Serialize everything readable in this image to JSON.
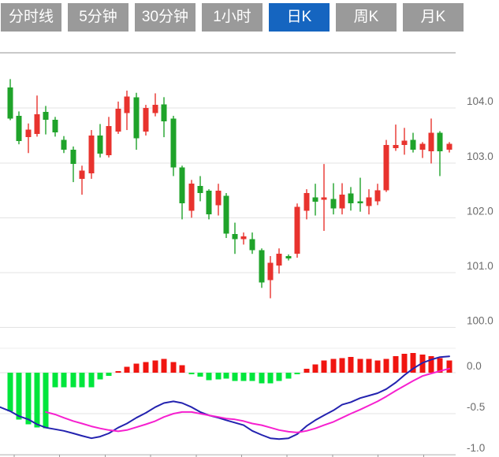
{
  "tabs": {
    "items": [
      {
        "label": "分时线",
        "active": false
      },
      {
        "label": "5分钟",
        "active": false
      },
      {
        "label": "30分钟",
        "active": false
      },
      {
        "label": "1小时",
        "active": false
      },
      {
        "label": "日K",
        "active": true
      },
      {
        "label": "周K",
        "active": false
      },
      {
        "label": "月K",
        "active": false
      }
    ],
    "active_bg": "#1565c0",
    "inactive_bg": "#9a9a9a",
    "text_color": "#ffffff"
  },
  "chart_data": {
    "type": "candlestick_with_macd",
    "grid": true,
    "legend": "none",
    "price_panel": {
      "ylim": [
        99.79,
        105.01
      ],
      "y_ticks": [
        {
          "label": "104.0",
          "value": 104.0
        },
        {
          "label": "103.0",
          "value": 103.0
        },
        {
          "label": "102.0",
          "value": 102.0
        },
        {
          "label": "101.0",
          "value": 101.0
        },
        {
          "label": "100.0",
          "value": 100.0
        }
      ],
      "candles_format": [
        "x",
        "open",
        "high",
        "low",
        "close"
      ],
      "candles": [
        [
          13,
          104.38,
          104.53,
          103.78,
          103.81
        ],
        [
          24,
          103.86,
          103.94,
          103.34,
          103.4
        ],
        [
          36,
          103.47,
          103.72,
          103.18,
          103.61
        ],
        [
          47,
          103.53,
          104.23,
          103.48,
          103.89
        ],
        [
          58,
          103.93,
          104.04,
          103.52,
          103.79
        ],
        [
          70,
          103.79,
          103.84,
          103.48,
          103.56
        ],
        [
          81,
          103.42,
          103.49,
          103.18,
          103.24
        ],
        [
          93,
          103.24,
          103.3,
          102.65,
          102.98
        ],
        [
          104,
          102.71,
          102.95,
          102.42,
          102.86
        ],
        [
          116,
          102.81,
          103.6,
          102.71,
          103.5
        ],
        [
          127,
          103.5,
          103.71,
          103.1,
          103.17
        ],
        [
          138,
          103.14,
          103.84,
          103.1,
          103.67
        ],
        [
          150,
          103.57,
          104.12,
          103.53,
          103.99
        ],
        [
          161,
          103.91,
          104.32,
          103.6,
          104.21
        ],
        [
          173,
          104.2,
          104.28,
          103.24,
          103.45
        ],
        [
          185,
          103.57,
          104.06,
          103.5,
          104.0
        ],
        [
          197,
          103.91,
          104.27,
          103.85,
          104.06
        ],
        [
          208,
          104.07,
          104.2,
          103.47,
          103.76
        ],
        [
          220,
          103.81,
          103.86,
          102.76,
          102.92
        ],
        [
          231,
          102.92,
          102.95,
          101.97,
          102.26
        ],
        [
          243,
          102.13,
          102.69,
          102.0,
          102.62
        ],
        [
          254,
          102.58,
          102.76,
          102.3,
          102.45
        ],
        [
          265,
          102.49,
          102.52,
          101.97,
          102.06
        ],
        [
          277,
          102.23,
          102.62,
          102.04,
          102.49
        ],
        [
          287,
          102.4,
          102.45,
          101.63,
          101.71
        ],
        [
          298,
          101.7,
          101.91,
          101.34,
          101.61
        ],
        [
          309,
          101.61,
          101.73,
          101.51,
          101.66
        ],
        [
          320,
          101.61,
          101.73,
          101.34,
          101.41
        ],
        [
          332,
          101.41,
          101.44,
          100.72,
          100.82
        ],
        [
          343,
          100.86,
          101.3,
          100.53,
          101.18
        ],
        [
          354,
          101.13,
          101.44,
          100.98,
          101.34
        ],
        [
          366,
          101.3,
          101.33,
          101.22,
          101.26
        ],
        [
          377,
          101.34,
          102.26,
          101.27,
          102.2
        ],
        [
          389,
          102.13,
          102.52,
          101.97,
          102.45
        ],
        [
          400,
          102.37,
          102.62,
          102.04,
          102.29
        ],
        [
          411,
          102.33,
          102.98,
          101.76,
          102.37
        ],
        [
          423,
          102.34,
          102.63,
          102.06,
          102.17
        ],
        [
          434,
          102.17,
          102.63,
          102.06,
          102.42
        ],
        [
          445,
          102.44,
          102.56,
          102.13,
          102.26
        ],
        [
          457,
          102.3,
          102.73,
          102.11,
          102.26
        ],
        [
          468,
          102.21,
          102.52,
          102.06,
          102.37
        ],
        [
          479,
          102.3,
          102.62,
          102.23,
          102.5
        ],
        [
          490,
          102.5,
          103.42,
          102.47,
          103.33
        ],
        [
          502,
          103.27,
          103.7,
          103.22,
          103.33
        ],
        [
          513,
          103.33,
          103.64,
          103.15,
          103.41
        ],
        [
          524,
          103.42,
          103.55,
          103.19,
          103.24
        ],
        [
          536,
          103.24,
          103.38,
          103.09,
          103.35
        ],
        [
          547,
          103.21,
          103.81,
          102.99,
          103.55
        ],
        [
          558,
          103.55,
          103.58,
          102.76,
          103.21
        ],
        [
          570,
          103.24,
          103.38,
          103.19,
          103.35
        ]
      ]
    },
    "macd_panel": {
      "ylim": [
        -1.0,
        0.27
      ],
      "y_ticks": [
        {
          "label": "0.0",
          "value": 0.0
        },
        {
          "label": "-0.5",
          "value": -0.5
        },
        {
          "label": "-1.0",
          "value": -1.0
        }
      ],
      "histogram_format": [
        "x",
        "value"
      ],
      "histogram": [
        [
          13,
          -0.47
        ],
        [
          24,
          -0.57
        ],
        [
          36,
          -0.63
        ],
        [
          47,
          -0.67
        ],
        [
          58,
          -0.68
        ],
        [
          70,
          -0.18
        ],
        [
          81,
          -0.18
        ],
        [
          93,
          -0.18
        ],
        [
          104,
          -0.18
        ],
        [
          116,
          -0.18
        ],
        [
          127,
          -0.08
        ],
        [
          138,
          -0.04
        ],
        [
          150,
          0.02
        ],
        [
          161,
          0.07
        ],
        [
          173,
          0.11
        ],
        [
          185,
          0.13
        ],
        [
          197,
          0.15
        ],
        [
          208,
          0.17
        ],
        [
          220,
          0.13
        ],
        [
          231,
          0.09
        ],
        [
          243,
          -0.02
        ],
        [
          254,
          -0.05
        ],
        [
          265,
          -0.09
        ],
        [
          277,
          -0.08
        ],
        [
          287,
          -0.07
        ],
        [
          298,
          -0.1
        ],
        [
          309,
          -0.1
        ],
        [
          320,
          -0.1
        ],
        [
          332,
          -0.13
        ],
        [
          343,
          -0.13
        ],
        [
          354,
          -0.1
        ],
        [
          366,
          -0.07
        ],
        [
          377,
          -0.02
        ],
        [
          389,
          0.05
        ],
        [
          400,
          0.1
        ],
        [
          411,
          0.15
        ],
        [
          423,
          0.17
        ],
        [
          434,
          0.18
        ],
        [
          445,
          0.19
        ],
        [
          457,
          0.17
        ],
        [
          468,
          0.17
        ],
        [
          479,
          0.15
        ],
        [
          490,
          0.17
        ],
        [
          502,
          0.2
        ],
        [
          513,
          0.23
        ],
        [
          524,
          0.24
        ],
        [
          536,
          0.22
        ],
        [
          547,
          0.2
        ],
        [
          558,
          0.18
        ],
        [
          570,
          0.15
        ]
      ],
      "dif_line": [
        [
          0,
          -0.42
        ],
        [
          13,
          -0.47
        ],
        [
          24,
          -0.53
        ],
        [
          36,
          -0.57
        ],
        [
          47,
          -0.63
        ],
        [
          58,
          -0.67
        ],
        [
          70,
          -0.69
        ],
        [
          81,
          -0.71
        ],
        [
          93,
          -0.74
        ],
        [
          104,
          -0.77
        ],
        [
          116,
          -0.8
        ],
        [
          127,
          -0.78
        ],
        [
          138,
          -0.74
        ],
        [
          150,
          -0.67
        ],
        [
          161,
          -0.62
        ],
        [
          173,
          -0.55
        ],
        [
          185,
          -0.49
        ],
        [
          197,
          -0.42
        ],
        [
          208,
          -0.37
        ],
        [
          220,
          -0.35
        ],
        [
          231,
          -0.37
        ],
        [
          243,
          -0.42
        ],
        [
          254,
          -0.48
        ],
        [
          265,
          -0.52
        ],
        [
          277,
          -0.55
        ],
        [
          287,
          -0.58
        ],
        [
          298,
          -0.61
        ],
        [
          309,
          -0.64
        ],
        [
          320,
          -0.71
        ],
        [
          332,
          -0.76
        ],
        [
          343,
          -0.8
        ],
        [
          354,
          -0.81
        ],
        [
          366,
          -0.8
        ],
        [
          377,
          -0.75
        ],
        [
          389,
          -0.65
        ],
        [
          400,
          -0.58
        ],
        [
          411,
          -0.52
        ],
        [
          423,
          -0.46
        ],
        [
          434,
          -0.39
        ],
        [
          445,
          -0.36
        ],
        [
          457,
          -0.31
        ],
        [
          468,
          -0.28
        ],
        [
          479,
          -0.25
        ],
        [
          490,
          -0.2
        ],
        [
          502,
          -0.12
        ],
        [
          513,
          -0.03
        ],
        [
          524,
          0.05
        ],
        [
          536,
          0.12
        ],
        [
          547,
          0.16
        ],
        [
          558,
          0.19
        ],
        [
          570,
          0.2
        ]
      ],
      "dea_line": [
        [
          58,
          -0.48
        ],
        [
          70,
          -0.51
        ],
        [
          81,
          -0.55
        ],
        [
          93,
          -0.59
        ],
        [
          104,
          -0.62
        ],
        [
          116,
          -0.655
        ],
        [
          127,
          -0.68
        ],
        [
          138,
          -0.7
        ],
        [
          150,
          -0.715
        ],
        [
          161,
          -0.7
        ],
        [
          173,
          -0.665
        ],
        [
          185,
          -0.63
        ],
        [
          197,
          -0.59
        ],
        [
          208,
          -0.54
        ],
        [
          220,
          -0.5
        ],
        [
          231,
          -0.48
        ],
        [
          243,
          -0.48
        ],
        [
          254,
          -0.5
        ],
        [
          265,
          -0.52
        ],
        [
          277,
          -0.54
        ],
        [
          287,
          -0.56
        ],
        [
          298,
          -0.57
        ],
        [
          309,
          -0.59
        ],
        [
          320,
          -0.62
        ],
        [
          332,
          -0.64
        ],
        [
          343,
          -0.67
        ],
        [
          354,
          -0.7
        ],
        [
          366,
          -0.72
        ],
        [
          377,
          -0.73
        ],
        [
          389,
          -0.71
        ],
        [
          400,
          -0.68
        ],
        [
          411,
          -0.64
        ],
        [
          423,
          -0.6
        ],
        [
          434,
          -0.55
        ],
        [
          445,
          -0.5
        ],
        [
          457,
          -0.45
        ],
        [
          468,
          -0.4
        ],
        [
          479,
          -0.35
        ],
        [
          490,
          -0.29
        ],
        [
          502,
          -0.22
        ],
        [
          513,
          -0.16
        ],
        [
          524,
          -0.1
        ],
        [
          536,
          -0.04
        ],
        [
          547,
          -0.01
        ],
        [
          558,
          0.02
        ],
        [
          570,
          0.05
        ]
      ]
    },
    "colors": {
      "up": "#e8332e",
      "down": "#1fa32a",
      "macd_up": "#f01510",
      "macd_down": "#00e63c",
      "dif": "#2322af",
      "dea": "#f620cf",
      "grid": "#e3e3e3",
      "border": "#c9c9c9",
      "axis_text": "#6b6b6b",
      "tick": "#9a9a9a"
    }
  }
}
